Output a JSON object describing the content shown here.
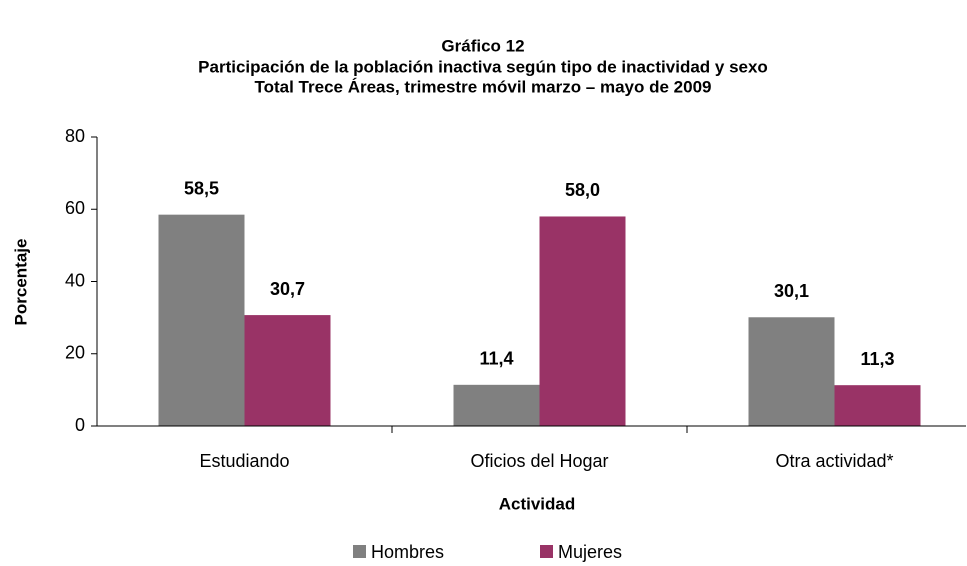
{
  "chart_data": {
    "type": "bar",
    "title": "Gráfico 12",
    "subtitle": [
      "Participación de la población inactiva según tipo de inactividad y sexo",
      "Total Trece Áreas, trimestre móvil marzo – mayo de 2009"
    ],
    "xlabel": "Actividad",
    "ylabel": "Porcentaje",
    "categories": [
      "Estudiando",
      "Oficios del Hogar",
      "Otra actividad*"
    ],
    "series": [
      {
        "name": "Hombres",
        "color": "#808080",
        "values": [
          58.5,
          11.4,
          30.1
        ],
        "value_labels": [
          "58,5",
          "11,4",
          "30,1"
        ]
      },
      {
        "name": "Mujeres",
        "color": "#993366",
        "values": [
          30.7,
          58.0,
          11.3
        ],
        "value_labels": [
          "30,7",
          "58,0",
          "11,3"
        ]
      }
    ],
    "ylim": [
      0,
      80
    ],
    "yticks": [
      0,
      20,
      40,
      60,
      80
    ],
    "legend": "bottom"
  }
}
